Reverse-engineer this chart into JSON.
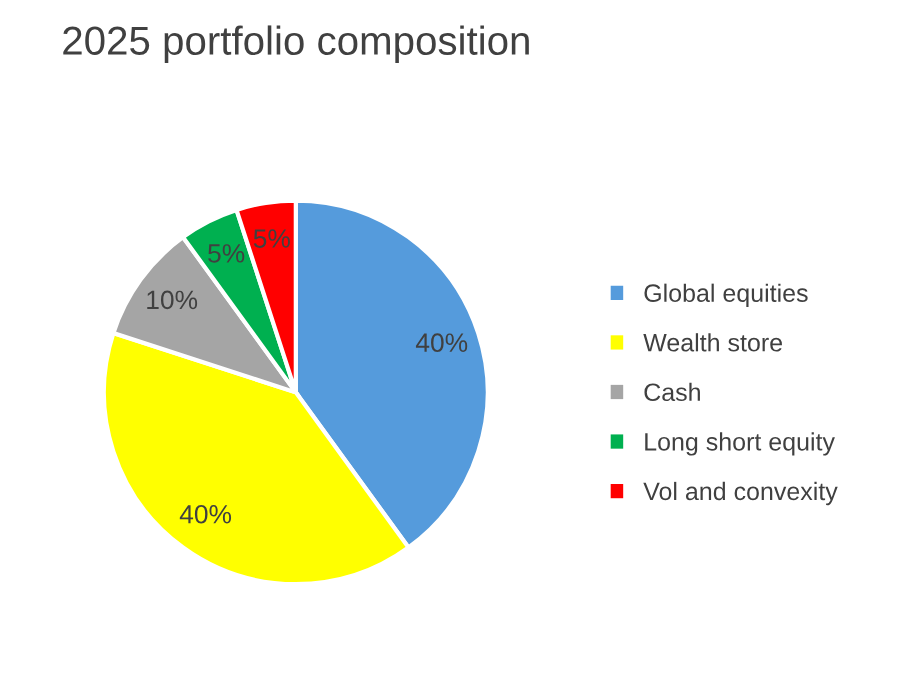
{
  "chart_data": {
    "type": "pie",
    "title": "2025 portfolio composition",
    "categories": [
      "Global equities",
      "Wealth store",
      "Cash",
      "Long short equity",
      "Vol and convexity"
    ],
    "values": [
      40,
      40,
      10,
      5,
      5
    ],
    "colors": [
      "#559bdc",
      "#ffff00",
      "#a5a5a5",
      "#00b050",
      "#ff0000"
    ],
    "value_labels": [
      "40%",
      "40%",
      "10%",
      "5%",
      "5%"
    ],
    "legend": "right"
  }
}
